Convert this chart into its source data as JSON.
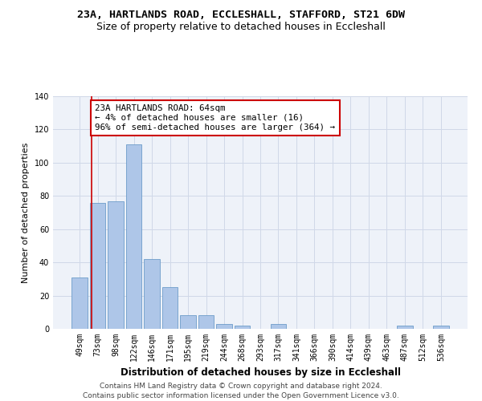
{
  "title": "23A, HARTLANDS ROAD, ECCLESHALL, STAFFORD, ST21 6DW",
  "subtitle": "Size of property relative to detached houses in Eccleshall",
  "xlabel": "Distribution of detached houses by size in Eccleshall",
  "ylabel": "Number of detached properties",
  "bar_labels": [
    "49sqm",
    "73sqm",
    "98sqm",
    "122sqm",
    "146sqm",
    "171sqm",
    "195sqm",
    "219sqm",
    "244sqm",
    "268sqm",
    "293sqm",
    "317sqm",
    "341sqm",
    "366sqm",
    "390sqm",
    "414sqm",
    "439sqm",
    "463sqm",
    "487sqm",
    "512sqm",
    "536sqm"
  ],
  "bar_values": [
    31,
    76,
    77,
    111,
    42,
    25,
    8,
    8,
    3,
    2,
    0,
    3,
    0,
    0,
    0,
    0,
    0,
    0,
    2,
    0,
    2
  ],
  "bar_color": "#aec6e8",
  "bar_edge_color": "#5a8fc2",
  "annotation_text": "23A HARTLANDS ROAD: 64sqm\n← 4% of detached houses are smaller (16)\n96% of semi-detached houses are larger (364) →",
  "annotation_box_color": "#ffffff",
  "annotation_box_edge_color": "#cc0000",
  "vline_color": "#cc0000",
  "vline_x_index": 0.65,
  "ylim": [
    0,
    140
  ],
  "yticks": [
    0,
    20,
    40,
    60,
    80,
    100,
    120,
    140
  ],
  "grid_color": "#d0d8e8",
  "bg_color": "#eef2f9",
  "footer1": "Contains HM Land Registry data © Crown copyright and database right 2024.",
  "footer2": "Contains public sector information licensed under the Open Government Licence v3.0.",
  "title_fontsize": 9.5,
  "subtitle_fontsize": 9,
  "xlabel_fontsize": 8.5,
  "ylabel_fontsize": 8,
  "tick_fontsize": 7,
  "footer_fontsize": 6.5,
  "annotation_fontsize": 7.8
}
